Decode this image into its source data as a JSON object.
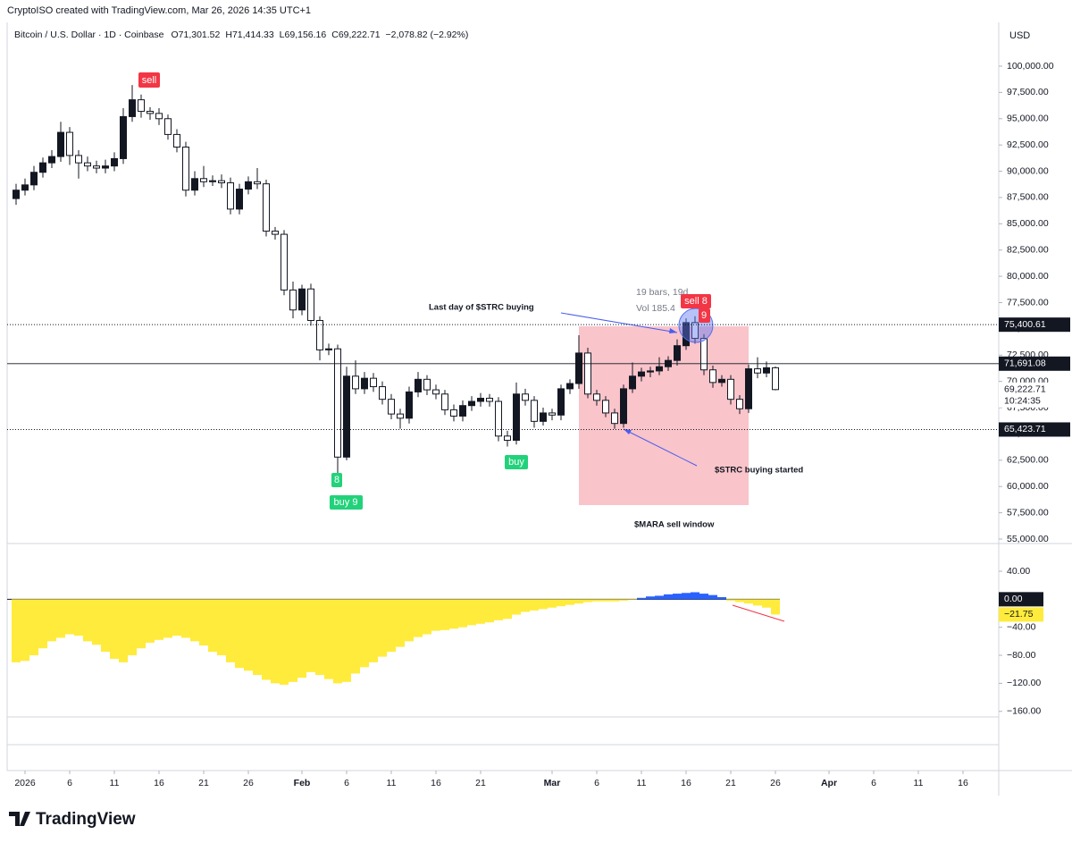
{
  "header": {
    "credit": "CryptoISO created with TradingView.com, Mar 26, 2026 14:35 UTC+1",
    "currency": "USD",
    "brand": "TradingView"
  },
  "chart_data": [
    {
      "type": "candlestick",
      "legend": {
        "symbol": "Bitcoin / U.S. Dollar · 1D · Coinbase",
        "values": [
          "O71,301.52",
          "H71,414.33",
          "L69,156.16",
          "C69,222.71"
        ],
        "change": "−2,078.82 (−2.92%)"
      },
      "x": [
        -1,
        0,
        1,
        2,
        3,
        4,
        5,
        6,
        7,
        8,
        9,
        10,
        11,
        12,
        13,
        14,
        15,
        16,
        17,
        18,
        19,
        20,
        21,
        22,
        23,
        24,
        25,
        26,
        27,
        28,
        29,
        30,
        31,
        32,
        33,
        34,
        35,
        36,
        37,
        38,
        39,
        40,
        41,
        42,
        43,
        44,
        45,
        46,
        47,
        48,
        49,
        50,
        51,
        52,
        53,
        54,
        55,
        56,
        57,
        58,
        59,
        60,
        61,
        62,
        63,
        64,
        65,
        66,
        67,
        68,
        69,
        70,
        71,
        72,
        73,
        74,
        75,
        76,
        77,
        78,
        79,
        80,
        81,
        82,
        83,
        84
      ],
      "open": [
        87400,
        88200,
        88700,
        89900,
        90800,
        91400,
        93700,
        91500,
        90800,
        90500,
        90300,
        90500,
        91200,
        95200,
        96800,
        95700,
        95500,
        95000,
        93500,
        92300,
        88200,
        89300,
        89000,
        89100,
        88900,
        86400,
        88300,
        89000,
        88800,
        84300,
        84000,
        78700,
        76800,
        78800,
        75800,
        73000,
        73100,
        62800,
        70500,
        69300,
        70300,
        69500,
        68300,
        66900,
        66500,
        69000,
        70200,
        69200,
        68800,
        67300,
        66700,
        67700,
        68100,
        68400,
        68100,
        64800,
        64400,
        68800,
        68200,
        66200,
        67000,
        66800,
        69300,
        69800,
        72700,
        68800,
        68200,
        67000,
        66000,
        69300,
        70500,
        70900,
        71000,
        71400,
        72000,
        73400,
        75600,
        74100,
        71100,
        69900,
        70200,
        68300,
        67400,
        71200,
        70800,
        71301.52
      ],
      "high": [
        88800,
        89300,
        90500,
        91300,
        92000,
        94700,
        94200,
        92000,
        91400,
        91000,
        91100,
        91800,
        96000,
        98200,
        97300,
        96100,
        96000,
        95400,
        94000,
        92800,
        90000,
        90500,
        89600,
        89700,
        89400,
        88800,
        89500,
        90300,
        89200,
        84700,
        84400,
        79500,
        79200,
        79300,
        76200,
        73600,
        73500,
        71400,
        72000,
        70900,
        70800,
        70000,
        68800,
        67400,
        69500,
        70900,
        70600,
        69700,
        69200,
        67800,
        68200,
        68600,
        68900,
        68800,
        68500,
        65300,
        69900,
        69300,
        68600,
        67500,
        67400,
        69700,
        70200,
        74400,
        73200,
        69200,
        68600,
        67400,
        69700,
        71800,
        71300,
        71400,
        72300,
        72400,
        74000,
        76000,
        76200,
        74500,
        71500,
        70600,
        70600,
        68700,
        71600,
        72300,
        71900,
        71414.33
      ],
      "low": [
        86800,
        87700,
        88200,
        89400,
        90300,
        90900,
        90600,
        89300,
        90000,
        89800,
        89800,
        90000,
        90700,
        94700,
        95100,
        94900,
        94400,
        93000,
        91800,
        87600,
        87700,
        88500,
        88600,
        88400,
        85900,
        85900,
        87800,
        88300,
        83800,
        83500,
        78200,
        76000,
        76300,
        75300,
        72000,
        72500,
        60000,
        62500,
        68800,
        68800,
        69000,
        67800,
        66400,
        65500,
        66000,
        68500,
        68700,
        68300,
        66800,
        66200,
        66200,
        67200,
        67600,
        67600,
        64300,
        63800,
        64000,
        67700,
        65600,
        65800,
        66300,
        66300,
        68800,
        69300,
        68400,
        67700,
        66600,
        65500,
        65600,
        68900,
        70000,
        70400,
        70600,
        71000,
        71500,
        73000,
        73600,
        70600,
        69400,
        69500,
        67800,
        66900,
        67000,
        70300,
        70400,
        69156.16
      ],
      "close": [
        88200,
        88700,
        89900,
        90800,
        91400,
        93700,
        91500,
        90800,
        90500,
        90300,
        90500,
        91200,
        95200,
        96800,
        95700,
        95500,
        95000,
        93500,
        92300,
        88200,
        89300,
        89000,
        89100,
        88900,
        86400,
        88300,
        89000,
        88800,
        84300,
        84000,
        78700,
        76800,
        78800,
        75800,
        73000,
        73100,
        62800,
        70500,
        69300,
        70300,
        69500,
        68300,
        66900,
        66500,
        69000,
        70200,
        69200,
        68800,
        67300,
        66700,
        67700,
        68100,
        68400,
        68100,
        64800,
        64400,
        68800,
        68200,
        66200,
        67000,
        66800,
        69300,
        69800,
        72700,
        68800,
        68200,
        67000,
        66000,
        69300,
        70500,
        70900,
        71000,
        71400,
        72000,
        73400,
        75600,
        74100,
        71100,
        69900,
        70200,
        68300,
        67400,
        71200,
        70800,
        71301.52,
        69222.71
      ],
      "colors": {
        "up": "#131722",
        "down": "#ffffff",
        "outline": "#131722"
      },
      "xlim": [
        -2,
        109
      ],
      "xticks": [
        {
          "value": 0,
          "label": "2026"
        },
        {
          "value": 5,
          "label": "6"
        },
        {
          "value": 10,
          "label": "11"
        },
        {
          "value": 15,
          "label": "16"
        },
        {
          "value": 20,
          "label": "21"
        },
        {
          "value": 25,
          "label": "26"
        },
        {
          "value": 31,
          "label": "Feb"
        },
        {
          "value": 36,
          "label": "6"
        },
        {
          "value": 41,
          "label": "11"
        },
        {
          "value": 46,
          "label": "16"
        },
        {
          "value": 51,
          "label": "21"
        },
        {
          "value": 59,
          "label": "Mar"
        },
        {
          "value": 64,
          "label": "6"
        },
        {
          "value": 69,
          "label": "11"
        },
        {
          "value": 74,
          "label": "16"
        },
        {
          "value": 79,
          "label": "21"
        },
        {
          "value": 84,
          "label": "26"
        },
        {
          "value": 90,
          "label": "Apr"
        },
        {
          "value": 95,
          "label": "6"
        },
        {
          "value": 100,
          "label": "11"
        },
        {
          "value": 105,
          "label": "16"
        }
      ],
      "ylim": [
        54575,
        104168
      ],
      "yticks": [
        {
          "value": 55000,
          "label": "55,000.00"
        },
        {
          "value": 57500,
          "label": "57,500.00"
        },
        {
          "value": 60000,
          "label": "60,000.00"
        },
        {
          "value": 62500,
          "label": "62,500.00"
        },
        {
          "value": 65000,
          "label": "65,000.00"
        },
        {
          "value": 67500,
          "label": "67,500.00"
        },
        {
          "value": 70000,
          "label": "70,000.00"
        },
        {
          "value": 72500,
          "label": "72,500.00"
        },
        {
          "value": 75000,
          "label": "75,000.00"
        },
        {
          "value": 77500,
          "label": "77,500.00"
        },
        {
          "value": 80000,
          "label": "80,000.00"
        },
        {
          "value": 82500,
          "label": "82,500.00"
        },
        {
          "value": 85000,
          "label": "85,000.00"
        },
        {
          "value": 87500,
          "label": "87,500.00"
        },
        {
          "value": 90000,
          "label": "90,000.00"
        },
        {
          "value": 92500,
          "label": "92,500.00"
        },
        {
          "value": 95000,
          "label": "95,000.00"
        },
        {
          "value": 97500,
          "label": "97,500.00"
        },
        {
          "value": 100000,
          "label": "100,000.00"
        }
      ],
      "price_lines": [
        {
          "value": 75400.61,
          "label": "75,400.61",
          "style": "dotted"
        },
        {
          "value": 71691.08,
          "label": "71,691.08",
          "style": "solid"
        },
        {
          "value": 65423.71,
          "label": "65,423.71",
          "style": "dotted"
        }
      ],
      "last_price_label": "69,222.71",
      "countdown": "10:24:35",
      "signals": [
        "sell",
        "8",
        "buy 9",
        "buy",
        "sell 8",
        "9"
      ],
      "measure": [
        "19 bars, 19d",
        "Vol 185.4"
      ],
      "annotations": [
        "Last day of $STRC buying",
        "$STRC buying started",
        "$MARA sell window"
      ]
    },
    {
      "type": "histogram",
      "values": [
        -90,
        -88,
        -80,
        -70,
        -60,
        -55,
        -50,
        -52,
        -60,
        -65,
        -75,
        -85,
        -90,
        -80,
        -70,
        -62,
        -58,
        -55,
        -52,
        -55,
        -60,
        -66,
        -75,
        -80,
        -90,
        -98,
        -102,
        -108,
        -115,
        -120,
        -122,
        -118,
        -112,
        -104,
        -108,
        -114,
        -120,
        -118,
        -106,
        -97,
        -90,
        -82,
        -75,
        -68,
        -60,
        -54,
        -50,
        -45,
        -44,
        -42,
        -40,
        -37,
        -35,
        -33,
        -30,
        -28,
        -22,
        -18,
        -16,
        -14,
        -12,
        -10,
        -8,
        -6,
        -4,
        -3,
        -3,
        -3,
        -2,
        -1,
        2,
        4,
        5,
        7,
        8,
        9,
        10,
        8,
        6,
        3,
        -2,
        -4,
        -6,
        -9,
        -12,
        -21.75
      ],
      "colors": {
        "positive": "#2962ff",
        "negative": "#ffeb3b"
      },
      "ylim": [
        -168,
        77
      ],
      "yticks": [
        {
          "value": 40,
          "label": "40.00"
        },
        {
          "value": -40,
          "label": "−40.00"
        },
        {
          "value": -80,
          "label": "−80.00"
        },
        {
          "value": -120,
          "label": "−120.00"
        },
        {
          "value": -160,
          "label": "−160.00"
        }
      ],
      "baseline": {
        "value": 0,
        "label": "0.00"
      },
      "last_value_label": "−21.75"
    }
  ]
}
